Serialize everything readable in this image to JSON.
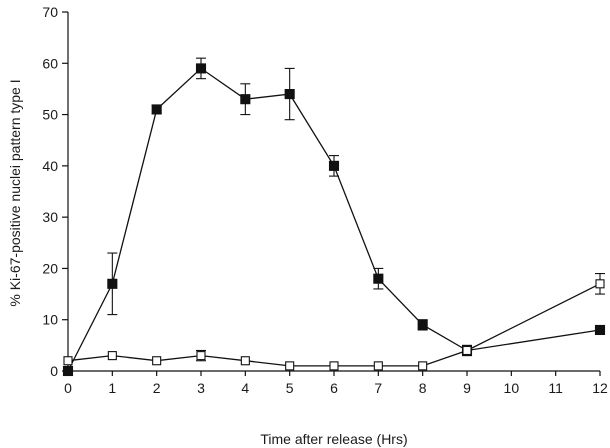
{
  "chart_data": {
    "type": "line",
    "xlabel": "Time after release (Hrs)",
    "ylabel": "% Ki-67-positive nuclei pattern type I",
    "xlim": [
      0,
      12
    ],
    "ylim": [
      0,
      70
    ],
    "x_ticks": [
      "0",
      "1",
      "2",
      "3",
      "4",
      "5",
      "6",
      "7",
      "8",
      "9",
      "10",
      "11",
      "12"
    ],
    "y_ticks": [
      "0",
      "10",
      "20",
      "30",
      "40",
      "50",
      "60",
      "70"
    ],
    "grid": false,
    "legend": "none",
    "series": [
      {
        "marker": "filled-square",
        "color": "#111111",
        "points": [
          {
            "x": 0,
            "y": 0,
            "err": 0
          },
          {
            "x": 1,
            "y": 17,
            "err": 6
          },
          {
            "x": 2,
            "y": 51,
            "err": 0.8
          },
          {
            "x": 3,
            "y": 59,
            "err": 2
          },
          {
            "x": 4,
            "y": 53,
            "err": 3
          },
          {
            "x": 5,
            "y": 54,
            "err": 5
          },
          {
            "x": 6,
            "y": 40,
            "err": 2
          },
          {
            "x": 7,
            "y": 18,
            "err": 2
          },
          {
            "x": 8,
            "y": 9,
            "err": 1
          },
          {
            "x": 9,
            "y": 4,
            "err": 1
          },
          {
            "x": 12,
            "y": 8,
            "err": 0
          }
        ]
      },
      {
        "marker": "open-square",
        "color": "#111111",
        "points": [
          {
            "x": 0,
            "y": 2,
            "err": 0
          },
          {
            "x": 1,
            "y": 3,
            "err": 0
          },
          {
            "x": 2,
            "y": 2,
            "err": 0
          },
          {
            "x": 3,
            "y": 3,
            "err": 1
          },
          {
            "x": 4,
            "y": 2,
            "err": 0
          },
          {
            "x": 5,
            "y": 1,
            "err": 0
          },
          {
            "x": 6,
            "y": 1,
            "err": 0
          },
          {
            "x": 7,
            "y": 1,
            "err": 0
          },
          {
            "x": 8,
            "y": 1,
            "err": 0
          },
          {
            "x": 9,
            "y": 4,
            "err": 0
          },
          {
            "x": 12,
            "y": 17,
            "err": 2
          }
        ]
      }
    ]
  }
}
